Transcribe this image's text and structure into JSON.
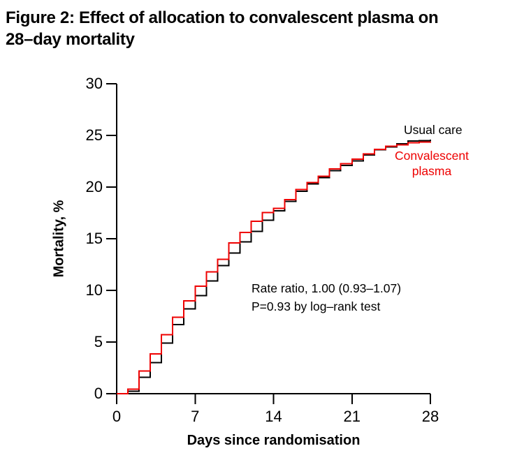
{
  "figure": {
    "title_line1": "Figure 2: Effect of allocation to convalescent plasma on",
    "title_line2": "28–day mortality"
  },
  "axes": {
    "x_label": "Days since randomisation",
    "y_label": "Mortality, %"
  },
  "legend": {
    "usual_care": "Usual care",
    "convalescent_plasma": "Convalescent plasma"
  },
  "annotation": {
    "line1": "Rate ratio, 1.00 (0.93–1.07)",
    "line2": "P=0.93 by log–rank test"
  },
  "colors": {
    "usual_care": "#000000",
    "convalescent_plasma": "#ee0000"
  },
  "chart_data": {
    "type": "line",
    "step": true,
    "title": "Figure 2: Effect of allocation to convalescent plasma on 28–day mortality",
    "xlabel": "Days since randomisation",
    "ylabel": "Mortality, %",
    "xlim": [
      0,
      28
    ],
    "ylim": [
      0,
      30
    ],
    "xticks": [
      0,
      7,
      14,
      21,
      28
    ],
    "yticks": [
      0,
      5,
      10,
      15,
      20,
      25,
      30
    ],
    "grid": false,
    "legend_position": "right-of-curve-end",
    "x_days": [
      0,
      1,
      2,
      3,
      4,
      5,
      6,
      7,
      8,
      9,
      10,
      11,
      12,
      13,
      14,
      15,
      16,
      17,
      18,
      19,
      20,
      21,
      22,
      23,
      24,
      25,
      26,
      27,
      28
    ],
    "series": [
      {
        "name": "Usual care",
        "color": "#000000",
        "values": [
          0,
          0.25,
          1.6,
          3.0,
          4.9,
          6.7,
          8.2,
          9.5,
          10.9,
          12.4,
          13.6,
          14.7,
          15.7,
          16.8,
          17.7,
          18.6,
          19.6,
          20.3,
          20.9,
          21.6,
          22.1,
          22.55,
          23.1,
          23.6,
          23.9,
          24.2,
          24.45,
          24.5,
          24.6
        ]
      },
      {
        "name": "Convalescent plasma",
        "color": "#ee0000",
        "values": [
          0,
          0.45,
          2.2,
          3.85,
          5.7,
          7.4,
          9.0,
          10.4,
          11.8,
          13.0,
          14.6,
          15.6,
          16.7,
          17.55,
          17.95,
          18.8,
          19.75,
          20.45,
          21.05,
          21.75,
          22.25,
          22.7,
          23.2,
          23.65,
          23.95,
          24.1,
          24.3,
          24.35,
          24.4
        ]
      }
    ],
    "annotations": [
      "Rate ratio, 1.00 (0.93–1.07)",
      "P=0.93 by log–rank test"
    ]
  }
}
